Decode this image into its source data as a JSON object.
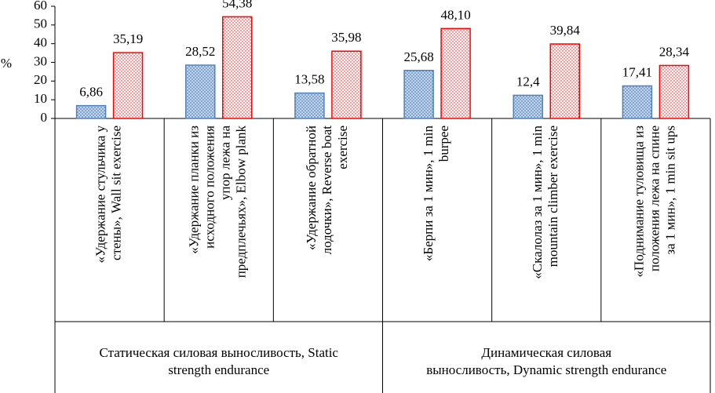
{
  "chart_data": {
    "type": "bar",
    "y_label": "%",
    "ylim": [
      0,
      60
    ],
    "yticks": [
      0,
      10,
      20,
      30,
      40,
      50,
      60
    ],
    "groups": [
      {
        "label": [
          "Статическая силовая выносливость, Static",
          "strength endurance"
        ],
        "categories": [
          [
            "«Удержание стульчика  у",
            "стены», Wall sit exercise"
          ],
          [
            "«Удержание планки из",
            "исходного положения",
            "упор лежа на",
            "предплечьях», Elbow plank"
          ],
          [
            "«Удержание обратной",
            "лодочки», Reverse boat",
            "exercise"
          ]
        ]
      },
      {
        "label": [
          "Динамическая силовая",
          "выносливость, Dynamic strength endurance"
        ],
        "categories": [
          [
            "«Берпи за 1 мин», 1 min",
            "burpee"
          ],
          [
            "«Скалолаз за 1 мин», 1 min",
            "mountain climber exercise"
          ],
          [
            "«Поднимание туловища из",
            "положения лежа на спине",
            "за 1 мин»,  1 min sit ups"
          ]
        ]
      }
    ],
    "series": [
      {
        "color": "#4f81bd",
        "values": [
          6.86,
          28.52,
          13.58,
          25.68,
          12.4,
          17.41
        ],
        "value_labels": [
          "6,86",
          "28,52",
          "13,58",
          "25,68",
          "12,4",
          "17,41"
        ]
      },
      {
        "color": "#ff0000",
        "values": [
          35.19,
          54.38,
          35.98,
          48.1,
          39.84,
          28.34
        ],
        "value_labels": [
          "35,19",
          "54,38",
          "35,98",
          "48,10",
          "39,84",
          "28,34"
        ]
      }
    ]
  }
}
